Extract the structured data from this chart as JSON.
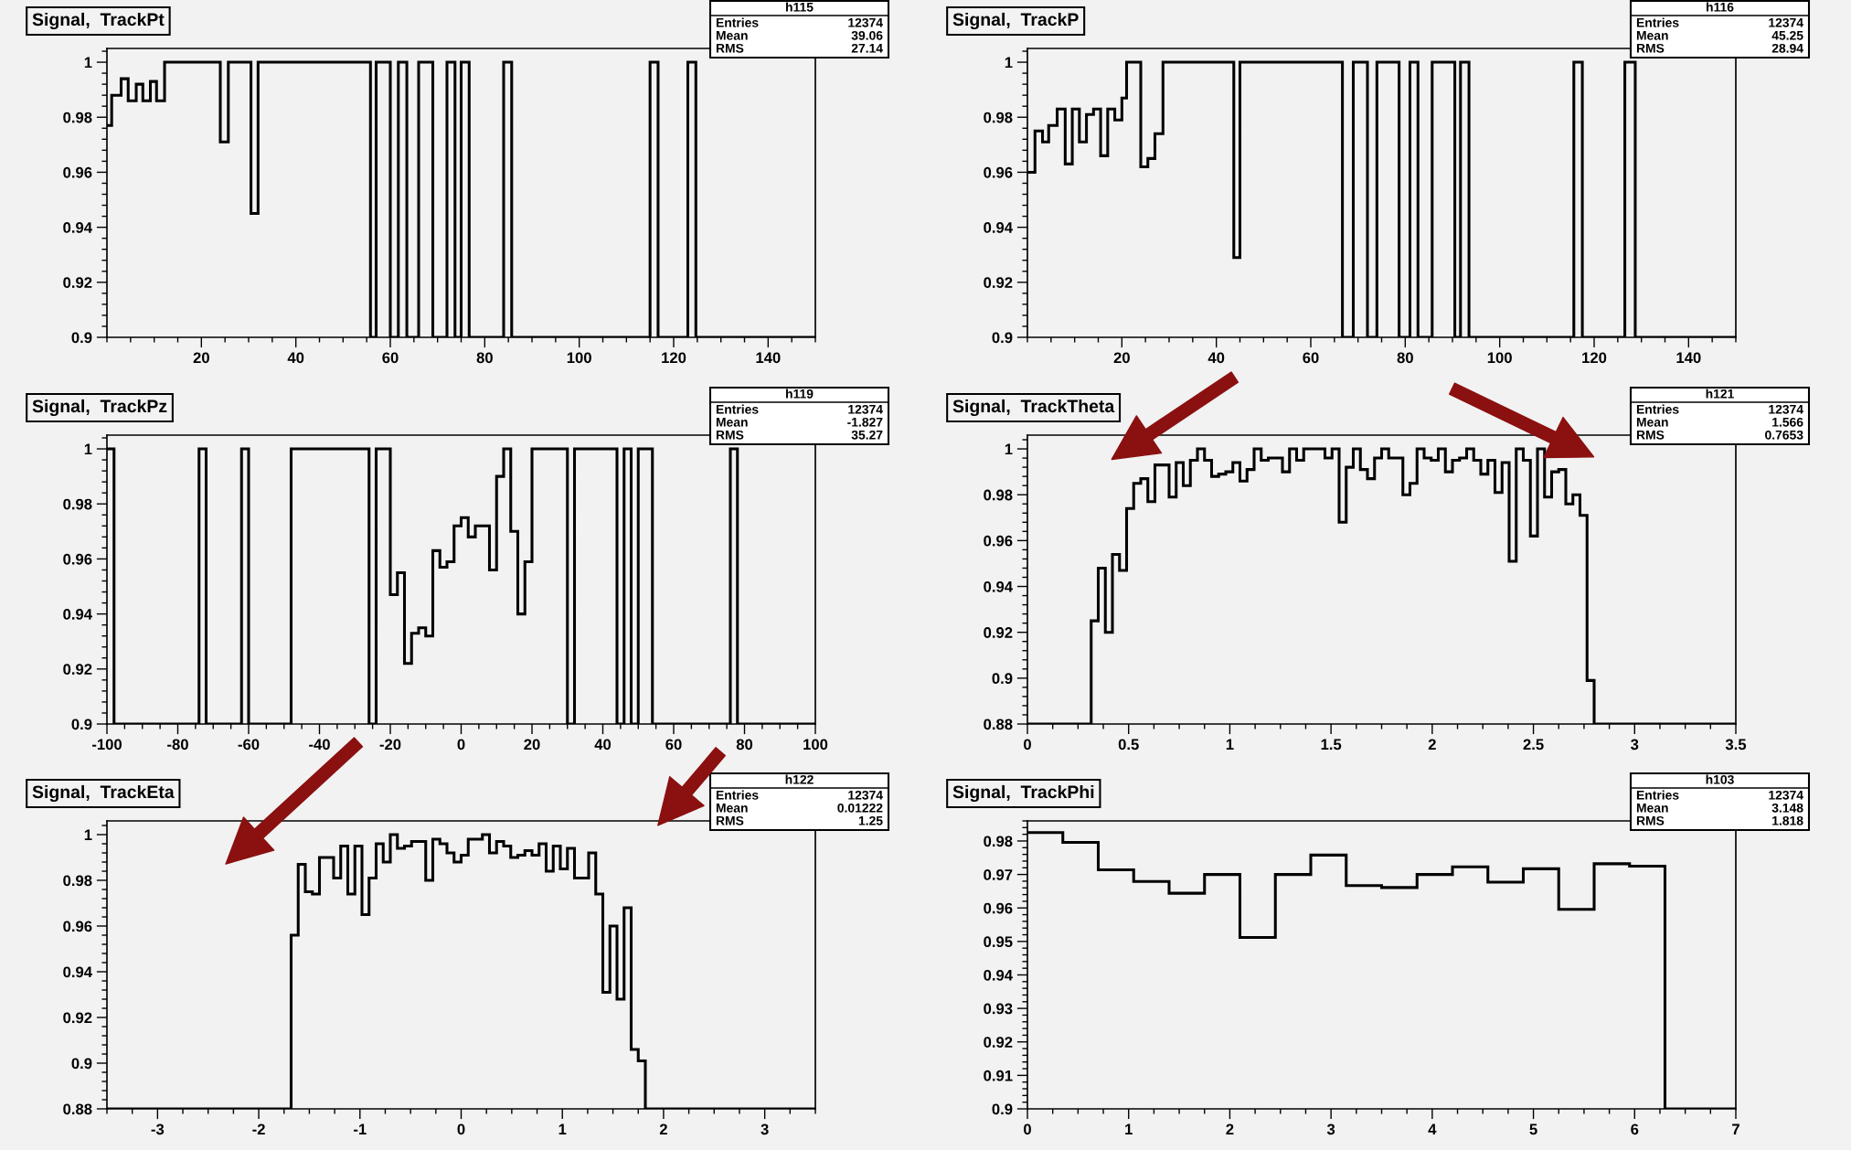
{
  "chart_data": [
    {
      "type": "histogram",
      "title": "Signal,  TrackPt",
      "color": "#000000",
      "grid": false,
      "bins": [
        0,
        1,
        3,
        4.5,
        6.2,
        7.6,
        9.2,
        10.5,
        12.2,
        24,
        25.7,
        30.5,
        32,
        55.8,
        57,
        60,
        61.7,
        63.5,
        66,
        69,
        72,
        73.7,
        75,
        76.7,
        84,
        85.7,
        115,
        116.7,
        123,
        124.7,
        150
      ],
      "values": [
        0.977,
        0.988,
        0.994,
        0.986,
        0.992,
        0.986,
        0.993,
        0.986,
        1,
        0.971,
        1,
        0.945,
        1,
        0.9,
        1,
        0.9,
        1,
        0.9,
        1,
        0.9,
        1,
        0.9,
        1,
        0.9,
        1,
        0.9,
        1,
        0.9,
        1,
        0.9
      ],
      "xlim": [
        0,
        150
      ],
      "xticks": [
        20,
        40,
        60,
        80,
        100,
        120,
        140
      ],
      "ylim": [
        0.9,
        1.005
      ],
      "yticks": [
        0.9,
        0.92,
        0.94,
        0.96,
        0.98,
        1
      ],
      "annotations": [
        "h115",
        "Entries",
        "12374",
        "Mean",
        "39.06",
        "RMS",
        "27.14"
      ]
    },
    {
      "type": "histogram",
      "title": "Signal,  TrackP",
      "color": "#000000",
      "grid": false,
      "bins": [
        0,
        1.6,
        3.2,
        4.5,
        6.3,
        8,
        9.5,
        11,
        12.5,
        14,
        15.5,
        17,
        18.5,
        20,
        21,
        24,
        25.5,
        27,
        28.7,
        43.7,
        45,
        66.7,
        69,
        72,
        74,
        78.7,
        81,
        82.7,
        85.7,
        90.5,
        91.7,
        93.5,
        115.7,
        117.5,
        126.5,
        128.7,
        150
      ],
      "values": [
        0.96,
        0.975,
        0.971,
        0.977,
        0.983,
        0.963,
        0.983,
        0.971,
        0.981,
        0.983,
        0.966,
        0.983,
        0.979,
        0.987,
        1,
        0.962,
        0.965,
        0.974,
        1,
        0.929,
        1,
        0.9,
        1,
        0.9,
        1,
        0.9,
        1,
        0.9,
        1,
        0.9,
        1,
        0.9,
        1,
        0.9,
        1,
        0.9
      ],
      "xlim": [
        0,
        150
      ],
      "xticks": [
        20,
        40,
        60,
        80,
        100,
        120,
        140
      ],
      "ylim": [
        0.9,
        1.005
      ],
      "yticks": [
        0.9,
        0.92,
        0.94,
        0.96,
        0.98,
        1
      ],
      "annotations": [
        "h116",
        "Entries",
        "12374",
        "Mean",
        "45.25",
        "RMS",
        "28.94"
      ]
    },
    {
      "type": "histogram",
      "title": "Signal,  TrackPz",
      "color": "#000000",
      "grid": false,
      "bins": [
        -100,
        -98,
        -74,
        -72,
        -62,
        -60,
        -48,
        -26,
        -24,
        -20,
        -18,
        -16,
        -14,
        -12,
        -10,
        -8,
        -6,
        -4,
        -2,
        0,
        2,
        4,
        8,
        10,
        12,
        14,
        16,
        18,
        20,
        30,
        32,
        44,
        46,
        48,
        50,
        54,
        76,
        78,
        100
      ],
      "values": [
        1,
        0.9,
        1,
        0.9,
        1,
        0.9,
        1,
        0.9,
        1,
        0.947,
        0.955,
        0.922,
        0.933,
        0.935,
        0.932,
        0.963,
        0.957,
        0.959,
        0.972,
        0.975,
        0.968,
        0.972,
        0.956,
        0.99,
        1,
        0.97,
        0.94,
        0.959,
        1,
        0.9,
        1,
        0.9,
        1,
        0.9,
        1,
        0.9,
        1,
        0.9
      ],
      "xlim": [
        -100,
        100
      ],
      "xticks": [
        -100,
        -80,
        -60,
        -40,
        -20,
        0,
        20,
        40,
        60,
        80,
        100
      ],
      "ylim": [
        0.9,
        1.005
      ],
      "yticks": [
        0.9,
        0.92,
        0.94,
        0.96,
        0.98,
        1
      ],
      "annotations": [
        "h119",
        "Entries",
        "12374",
        "Mean",
        "-1.827",
        "RMS",
        "35.27"
      ]
    },
    {
      "type": "histogram",
      "title": "Signal,  TrackTheta",
      "color": "#000000",
      "grid": false,
      "bins": [
        0,
        0.315,
        0.35,
        0.385,
        0.42,
        0.455,
        0.49,
        0.525,
        0.56,
        0.595,
        0.63,
        0.665,
        0.7,
        0.735,
        0.77,
        0.805,
        0.84,
        0.875,
        0.91,
        0.945,
        0.98,
        1.015,
        1.05,
        1.085,
        1.12,
        1.155,
        1.19,
        1.225,
        1.26,
        1.295,
        1.33,
        1.365,
        1.4,
        1.435,
        1.47,
        1.505,
        1.54,
        1.575,
        1.61,
        1.645,
        1.68,
        1.715,
        1.75,
        1.785,
        1.82,
        1.855,
        1.89,
        1.925,
        1.96,
        1.995,
        2.03,
        2.065,
        2.1,
        2.135,
        2.17,
        2.205,
        2.24,
        2.275,
        2.31,
        2.345,
        2.38,
        2.415,
        2.45,
        2.485,
        2.52,
        2.555,
        2.59,
        2.625,
        2.66,
        2.695,
        2.73,
        2.765,
        2.8,
        3.5
      ],
      "values": [
        0.88,
        0.925,
        0.948,
        0.92,
        0.954,
        0.947,
        0.974,
        0.985,
        0.987,
        0.977,
        0.993,
        0.993,
        0.979,
        0.994,
        0.984,
        0.995,
        1,
        0.995,
        0.988,
        0.989,
        0.99,
        0.994,
        0.986,
        0.991,
        1,
        0.995,
        0.996,
        0.996,
        0.99,
        1,
        0.995,
        1,
        1,
        1,
        0.996,
        1,
        0.968,
        0.992,
        1,
        0.991,
        0.987,
        0.996,
        1,
        0.996,
        0.996,
        0.98,
        0.985,
        1,
        0.996,
        0.995,
        1,
        0.99,
        0.995,
        0.996,
        1,
        0.995,
        0.989,
        0.995,
        0.981,
        0.994,
        0.951,
        1,
        0.995,
        0.962,
        1,
        0.979,
        0.99,
        0.991,
        0.976,
        0.98,
        0.971,
        0.899,
        0.88
      ],
      "xlim": [
        0,
        3.5
      ],
      "xticks": [
        0,
        0.5,
        1,
        1.5,
        2,
        2.5,
        3,
        3.5
      ],
      "ylim": [
        0.88,
        1.006
      ],
      "yticks": [
        0.88,
        0.9,
        0.92,
        0.94,
        0.96,
        0.98,
        1
      ],
      "annotations": [
        "h121",
        "Entries",
        "12374",
        "Mean",
        "1.566",
        "RMS",
        "0.7653"
      ]
    },
    {
      "type": "histogram",
      "title": "Signal,  TrackEta",
      "color": "#000000",
      "grid": false,
      "bins": [
        -3.5,
        -1.68,
        -1.61,
        -1.54,
        -1.47,
        -1.4,
        -1.33,
        -1.26,
        -1.19,
        -1.12,
        -1.05,
        -0.98,
        -0.91,
        -0.84,
        -0.77,
        -0.7,
        -0.63,
        -0.56,
        -0.49,
        -0.42,
        -0.35,
        -0.28,
        -0.21,
        -0.14,
        -0.07,
        0,
        0.07,
        0.14,
        0.21,
        0.28,
        0.35,
        0.42,
        0.49,
        0.56,
        0.63,
        0.7,
        0.77,
        0.84,
        0.91,
        0.98,
        1.05,
        1.12,
        1.19,
        1.26,
        1.33,
        1.4,
        1.47,
        1.54,
        1.61,
        1.68,
        1.75,
        1.82,
        3.5
      ],
      "values": [
        0.88,
        0.956,
        0.987,
        0.975,
        0.974,
        0.99,
        0.99,
        0.981,
        0.995,
        0.974,
        0.995,
        0.965,
        0.981,
        0.996,
        0.988,
        1,
        0.994,
        0.995,
        0.997,
        0.997,
        0.98,
        0.998,
        0.996,
        0.992,
        0.988,
        0.991,
        0.998,
        0.998,
        1,
        0.992,
        0.997,
        0.995,
        0.99,
        0.991,
        0.993,
        0.991,
        0.996,
        0.984,
        0.995,
        0.985,
        0.994,
        0.981,
        0.981,
        0.992,
        0.974,
        0.931,
        0.96,
        0.928,
        0.968,
        0.906,
        0.901,
        0.88
      ],
      "xlim": [
        -3.5,
        3.5
      ],
      "xticks": [
        -3,
        -2,
        -1,
        0,
        1,
        2,
        3
      ],
      "ylim": [
        0.88,
        1.006
      ],
      "yticks": [
        0.88,
        0.9,
        0.92,
        0.94,
        0.96,
        0.98,
        1
      ],
      "annotations": [
        "h122",
        "Entries",
        "12374",
        "Mean",
        "0.01222",
        "RMS",
        "1.25"
      ]
    },
    {
      "type": "histogram",
      "title": "Signal,  TrackPhi",
      "color": "#000000",
      "grid": false,
      "bins": [
        0,
        0.35,
        0.7,
        1.05,
        1.4,
        1.75,
        2.1,
        2.45,
        2.8,
        3.15,
        3.5,
        3.85,
        4.2,
        4.55,
        4.9,
        5.25,
        5.6,
        5.95,
        6.3,
        7
      ],
      "values": [
        0.9825,
        0.9796,
        0.9714,
        0.9679,
        0.9644,
        0.97,
        0.9512,
        0.97,
        0.9758,
        0.9667,
        0.9661,
        0.97,
        0.9723,
        0.9677,
        0.9717,
        0.9596,
        0.9732,
        0.9725,
        0.9
      ],
      "xlim": [
        0,
        7
      ],
      "xticks": [
        0,
        1,
        2,
        3,
        4,
        5,
        6,
        7
      ],
      "ylim": [
        0.9,
        0.986
      ],
      "yticks": [
        0.9,
        0.91,
        0.92,
        0.93,
        0.94,
        0.95,
        0.96,
        0.97,
        0.98
      ],
      "annotations": [
        "h103",
        "Entries",
        "12374",
        "Mean",
        "3.148",
        "RMS",
        "1.818"
      ]
    }
  ]
}
